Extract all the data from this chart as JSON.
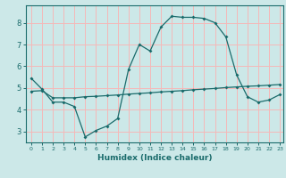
{
  "xlabel": "Humidex (Indice chaleur)",
  "xlim": [
    -0.5,
    23.3
  ],
  "ylim": [
    2.5,
    8.8
  ],
  "yticks": [
    3,
    4,
    5,
    6,
    7,
    8
  ],
  "xticks": [
    0,
    1,
    2,
    3,
    4,
    5,
    6,
    7,
    8,
    9,
    10,
    11,
    12,
    13,
    14,
    15,
    16,
    17,
    18,
    19,
    20,
    21,
    22,
    23
  ],
  "background_color": "#cce8e8",
  "grid_color": "#f5b8b8",
  "line_color": "#1a6b6b",
  "curve1_x": [
    0,
    1,
    2,
    3,
    4,
    5,
    6,
    7,
    8,
    9,
    10,
    11,
    12,
    13,
    14,
    15,
    16,
    17,
    18,
    19,
    20,
    21,
    22,
    23
  ],
  "curve1_y": [
    5.45,
    4.95,
    4.35,
    4.35,
    4.15,
    2.75,
    3.05,
    3.25,
    3.6,
    5.85,
    7.0,
    6.7,
    7.8,
    8.3,
    8.25,
    8.25,
    8.2,
    8.0,
    7.35,
    5.6,
    4.6,
    4.35,
    4.45,
    4.7
  ],
  "curve2_x": [
    0,
    1,
    2,
    3,
    4,
    5,
    6,
    7,
    8,
    9,
    10,
    11,
    12,
    13,
    14,
    15,
    16,
    17,
    18,
    19,
    20,
    21,
    22,
    23
  ],
  "curve2_y": [
    4.85,
    4.88,
    4.55,
    4.55,
    4.55,
    4.6,
    4.62,
    4.65,
    4.68,
    4.72,
    4.75,
    4.78,
    4.82,
    4.85,
    4.88,
    4.92,
    4.95,
    4.98,
    5.02,
    5.05,
    5.08,
    5.1,
    5.13,
    5.16
  ]
}
